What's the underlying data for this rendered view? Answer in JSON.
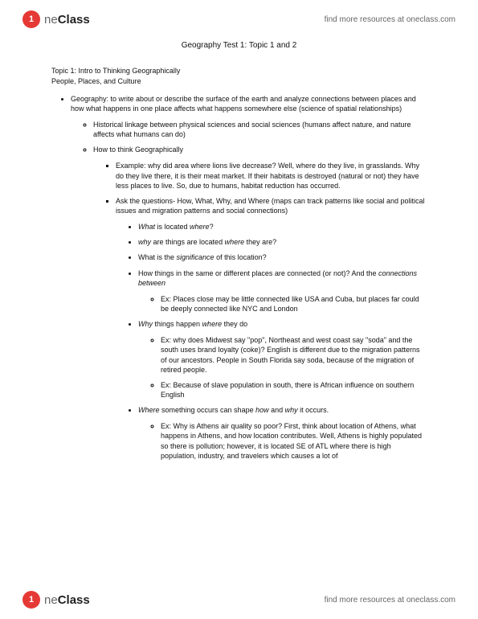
{
  "brand": {
    "circle_text": "1",
    "name_prefix": "ne",
    "name_bold": "Class",
    "link_text": "find more resources at oneclass.com",
    "circle_bg": "#e53935",
    "circle_fg": "#ffffff"
  },
  "doc": {
    "title": "Geography Test 1: Topic 1 and 2",
    "topic_line1": "Topic 1: Intro to Thinking Geographically",
    "topic_line2": "People, Places, and Culture"
  },
  "bullets": {
    "geography": "Geography: to write about or describe the surface of the earth and analyze connections between places and how what happens in one place affects what happens somewhere else (science of spatial relationships)",
    "historical": "Historical linkage between physical sciences and social sciences (humans affect nature, and nature affects what humans can do)",
    "howto": "How to think Geographically",
    "example_lions": "Example: why did area where lions live decrease? Well, where do they live, in grasslands. Why do they live there, it is their meat market. If their habitats is destroyed (natural or not) they have less places to live. So, due to humans, habitat reduction has occurred.",
    "ask_questions": "Ask the questions- How, What, Why, and Where (maps can track patterns like social and political issues and migration patterns and social connections)",
    "q_what_pre": "What",
    "q_what_mid": " is located ",
    "q_what_post": "where",
    "q_what_end": "?",
    "q_why_pre": "why",
    "q_why_mid": " are things are located ",
    "q_why_post": "where",
    "q_why_end": " they are?",
    "q_sig_pre": "What is the ",
    "q_sig_em": "significance",
    "q_sig_post": " of this location?",
    "q_conn_pre": "How things in the same or different places are connected (or not)? And the ",
    "q_conn_em": "connections between",
    "ex_usa_cuba": "Ex: Places close may be little connected like USA and Cuba, but places far could be deeply connected like NYC and London",
    "q_whyhappen_pre": "Why",
    "q_whyhappen_mid": " things happen ",
    "q_whyhappen_post": "where",
    "q_whyhappen_end": " they do",
    "ex_pop_soda": "Ex: why does Midwest say \"pop\", Northeast and west coast say \"soda\" and the south uses brand loyalty (coke)? English is different due to the migration patterns of our ancestors. People in South Florida say soda, because of the migration of retired people.",
    "ex_slave": "Ex: Because of slave population in south, there is African influence on southern English",
    "q_where_pre": "Where",
    "q_where_mid": " something occurs can shape ",
    "q_where_how": "how",
    "q_where_and": " and ",
    "q_where_why": "why",
    "q_where_end": " it occurs.",
    "ex_athens": "Ex: Why is Athens air quality so poor? First, think about location of Athens, what happens in Athens, and how location contributes. Well, Athens is highly populated so there is pollution; however, it is located SE of ATL where there is high population, industry, and travelers which causes a lot of"
  }
}
